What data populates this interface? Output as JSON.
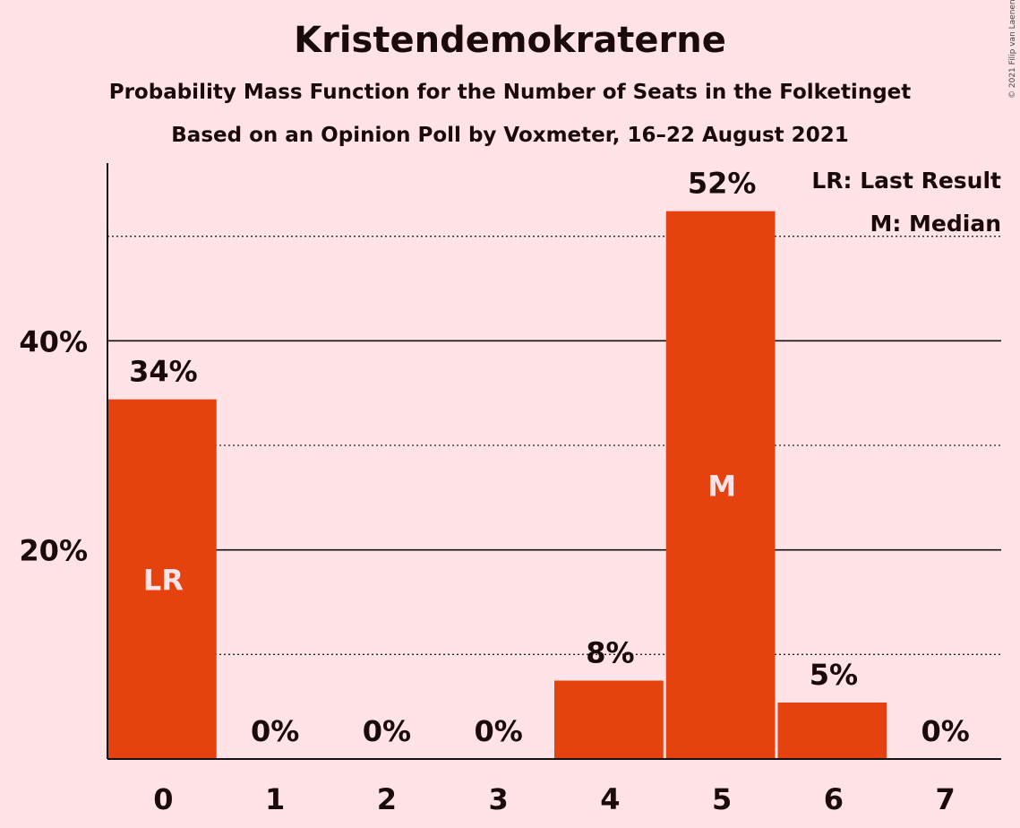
{
  "colors": {
    "background": "#FFE3E6",
    "bar": "#E64210",
    "text": "#1a0a0a",
    "inbar_text": "#FFE3E6"
  },
  "header": {
    "title": "Kristendemokraterne",
    "subtitle": "Probability Mass Function for the Number of Seats in the Folketinget",
    "source": "Based on an Opinion Poll by Voxmeter, 16–22 August 2021",
    "copyright": "© 2021 Filip van Laenen"
  },
  "chart_data": {
    "type": "bar",
    "categories": [
      "0",
      "1",
      "2",
      "3",
      "4",
      "5",
      "6",
      "7"
    ],
    "values": [
      34.4,
      0,
      0,
      0,
      7.5,
      52.4,
      5.4,
      0
    ],
    "value_labels": [
      "34%",
      "0%",
      "0%",
      "0%",
      "8%",
      "52%",
      "5%",
      "0%"
    ],
    "bar_annotations": [
      {
        "index": 0,
        "text": "LR"
      },
      {
        "index": 5,
        "text": "M"
      }
    ],
    "yticks": [
      {
        "value": 20,
        "label": "20%"
      },
      {
        "value": 40,
        "label": "40%"
      }
    ],
    "minor_gridlines": [
      10,
      30,
      50
    ],
    "ylim": [
      0,
      57
    ],
    "legend": [
      "LR: Last Result",
      "M: Median"
    ],
    "legend_position": "top-right",
    "grid": true
  }
}
